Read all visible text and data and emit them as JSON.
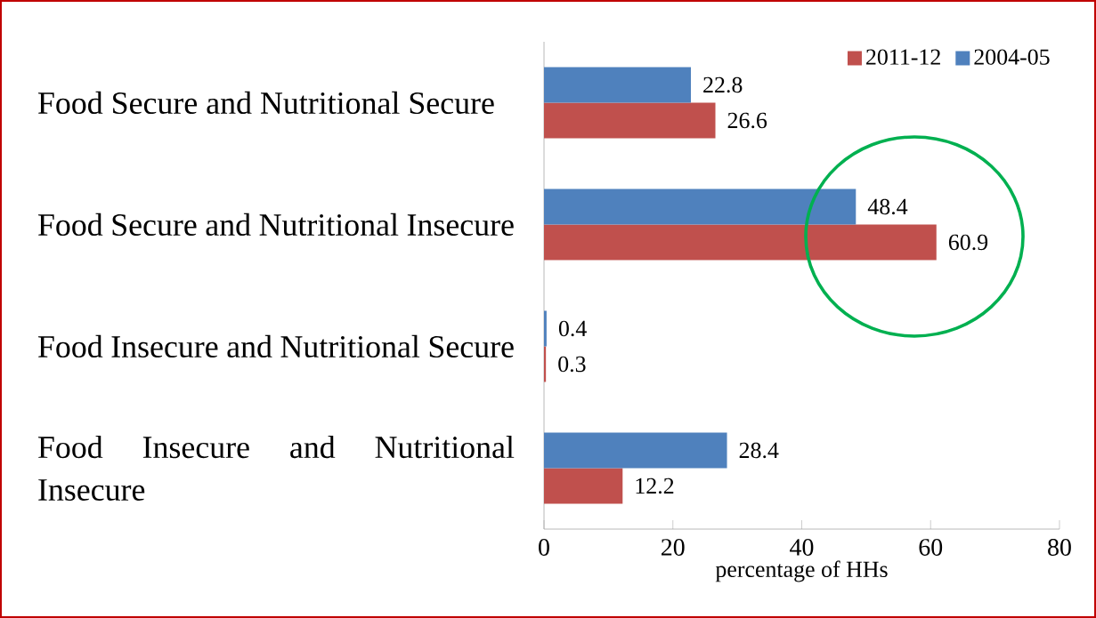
{
  "chart_data": {
    "type": "bar",
    "orientation": "horizontal",
    "categories": [
      "Food Secure and Nutritional Secure",
      "Food Secure and Nutritional Insecure",
      "Food Insecure and Nutritional Secure",
      "Food Insecure  and  Nutritional Insecure"
    ],
    "series": [
      {
        "name": "2011-12",
        "color": "#c0504d",
        "values": [
          26.6,
          60.9,
          0.3,
          12.2
        ]
      },
      {
        "name": "2004-05",
        "color": "#4f81bd",
        "values": [
          22.8,
          48.4,
          0.4,
          28.4
        ]
      }
    ],
    "xlabel": "percentage of HHs",
    "xlim": [
      0,
      80
    ],
    "xticks": [
      0,
      20,
      40,
      60,
      80
    ],
    "data_labels": true,
    "legend": "top right",
    "grid": false
  }
}
